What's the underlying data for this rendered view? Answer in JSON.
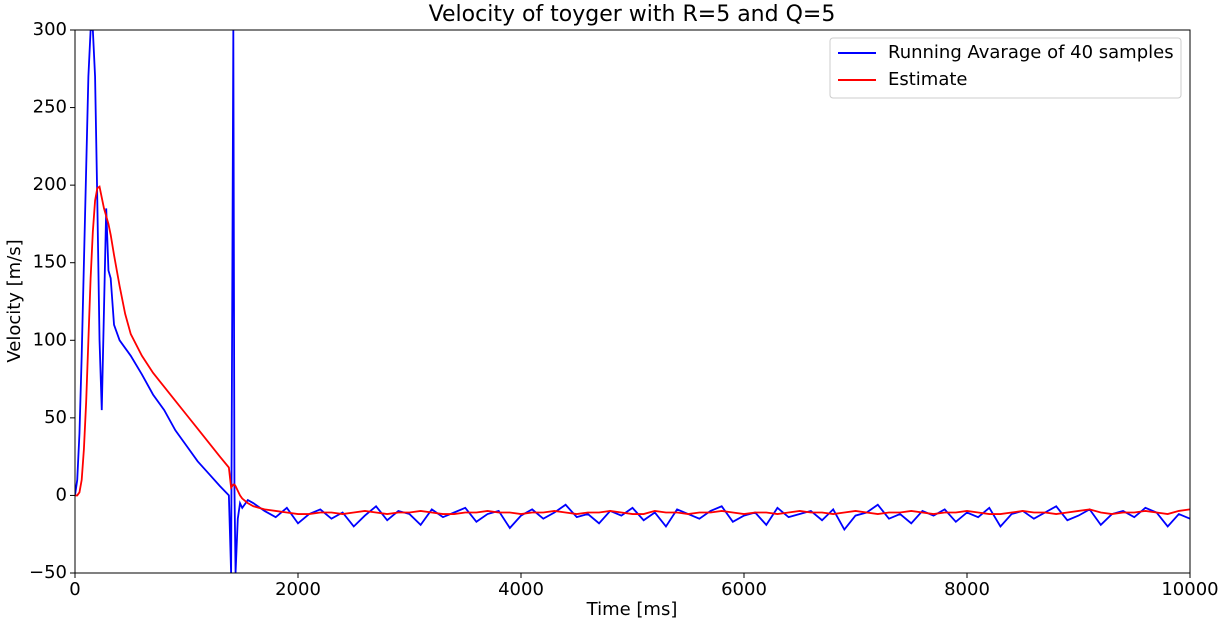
{
  "chart_data": {
    "type": "line",
    "title": "Velocity of toyger with R=5 and Q=5",
    "x_label": "Time [ms]",
    "y_label": "Velocity [m/s]",
    "x": [
      0,
      20,
      40,
      60,
      80,
      100,
      120,
      140,
      160,
      180,
      200,
      220,
      240,
      260,
      280,
      300,
      320,
      350,
      400,
      450,
      500,
      600,
      700,
      800,
      900,
      1000,
      1100,
      1200,
      1300,
      1380,
      1400,
      1410,
      1420,
      1430,
      1440,
      1460,
      1480,
      1500,
      1550,
      1600,
      1700,
      1800,
      1900,
      2000,
      2100,
      2200,
      2300,
      2400,
      2500,
      2600,
      2700,
      2800,
      2900,
      3000,
      3100,
      3200,
      3300,
      3400,
      3500,
      3600,
      3700,
      3800,
      3900,
      4000,
      4100,
      4200,
      4300,
      4400,
      4500,
      4600,
      4700,
      4800,
      4900,
      5000,
      5100,
      5200,
      5300,
      5400,
      5500,
      5600,
      5700,
      5800,
      5900,
      6000,
      6100,
      6200,
      6300,
      6400,
      6500,
      6600,
      6700,
      6800,
      6900,
      7000,
      7100,
      7200,
      7300,
      7400,
      7500,
      7600,
      7700,
      7800,
      7900,
      8000,
      8100,
      8200,
      8300,
      8400,
      8500,
      8600,
      8700,
      8800,
      8900,
      9000,
      9100,
      9200,
      9300,
      9400,
      9500,
      9600,
      9700,
      9800,
      9900,
      10000
    ],
    "series": [
      {
        "name": "Running Avarage of 40 samples",
        "color": "#0000ff",
        "values": [
          0,
          10,
          40,
          90,
          150,
          210,
          270,
          300,
          300,
          270,
          190,
          100,
          55,
          120,
          185,
          145,
          140,
          110,
          100,
          95,
          90,
          78,
          65,
          55,
          42,
          32,
          22,
          14,
          6,
          0,
          -50,
          120,
          300,
          5,
          -50,
          -15,
          -5,
          -8,
          -3,
          -5,
          -10,
          -14,
          -8,
          -18,
          -12,
          -9,
          -15,
          -11,
          -20,
          -13,
          -7,
          -16,
          -10,
          -12,
          -19,
          -9,
          -14,
          -11,
          -8,
          -17,
          -12,
          -10,
          -21,
          -13,
          -9,
          -15,
          -11,
          -6,
          -14,
          -12,
          -18,
          -10,
          -13,
          -8,
          -16,
          -11,
          -20,
          -9,
          -12,
          -15,
          -10,
          -7,
          -17,
          -13,
          -11,
          -19,
          -8,
          -14,
          -12,
          -10,
          -16,
          -9,
          -22,
          -13,
          -11,
          -6,
          -15,
          -12,
          -18,
          -10,
          -13,
          -9,
          -17,
          -11,
          -14,
          -8,
          -20,
          -12,
          -10,
          -15,
          -11,
          -7,
          -16,
          -13,
          -9,
          -19,
          -12,
          -10,
          -14,
          -8,
          -11,
          -20,
          -12,
          -15
        ]
      },
      {
        "name": "Estimate",
        "color": "#ff0000",
        "values": [
          0,
          0,
          2,
          10,
          30,
          60,
          100,
          140,
          170,
          190,
          198,
          199,
          192,
          185,
          180,
          175,
          168,
          155,
          135,
          117,
          104,
          90,
          79,
          70,
          61,
          52,
          43,
          34,
          25,
          18,
          5,
          6,
          7,
          7,
          6,
          3,
          0,
          -2,
          -5,
          -7,
          -9,
          -10,
          -11,
          -12,
          -12,
          -11,
          -11,
          -12,
          -11,
          -10,
          -11,
          -12,
          -11,
          -11,
          -10,
          -11,
          -12,
          -12,
          -11,
          -11,
          -10,
          -11,
          -11,
          -12,
          -11,
          -11,
          -10,
          -11,
          -12,
          -11,
          -11,
          -10,
          -11,
          -12,
          -12,
          -10,
          -11,
          -11,
          -12,
          -11,
          -11,
          -10,
          -11,
          -12,
          -11,
          -11,
          -12,
          -11,
          -10,
          -11,
          -11,
          -12,
          -11,
          -10,
          -11,
          -12,
          -11,
          -11,
          -10,
          -11,
          -12,
          -11,
          -11,
          -10,
          -11,
          -12,
          -12,
          -11,
          -10,
          -11,
          -11,
          -12,
          -11,
          -10,
          -9,
          -11,
          -12,
          -11,
          -11,
          -10,
          -11,
          -12,
          -10,
          -9
        ]
      }
    ],
    "xlim": [
      0,
      10000
    ],
    "xticks": [
      0,
      2000,
      4000,
      6000,
      8000,
      10000
    ],
    "ylim": [
      -50,
      300
    ],
    "yticks": [
      {
        "value": -50,
        "label": "−50"
      },
      0,
      50,
      100,
      150,
      200,
      250,
      300
    ],
    "grid": false,
    "legend": "upper right"
  }
}
